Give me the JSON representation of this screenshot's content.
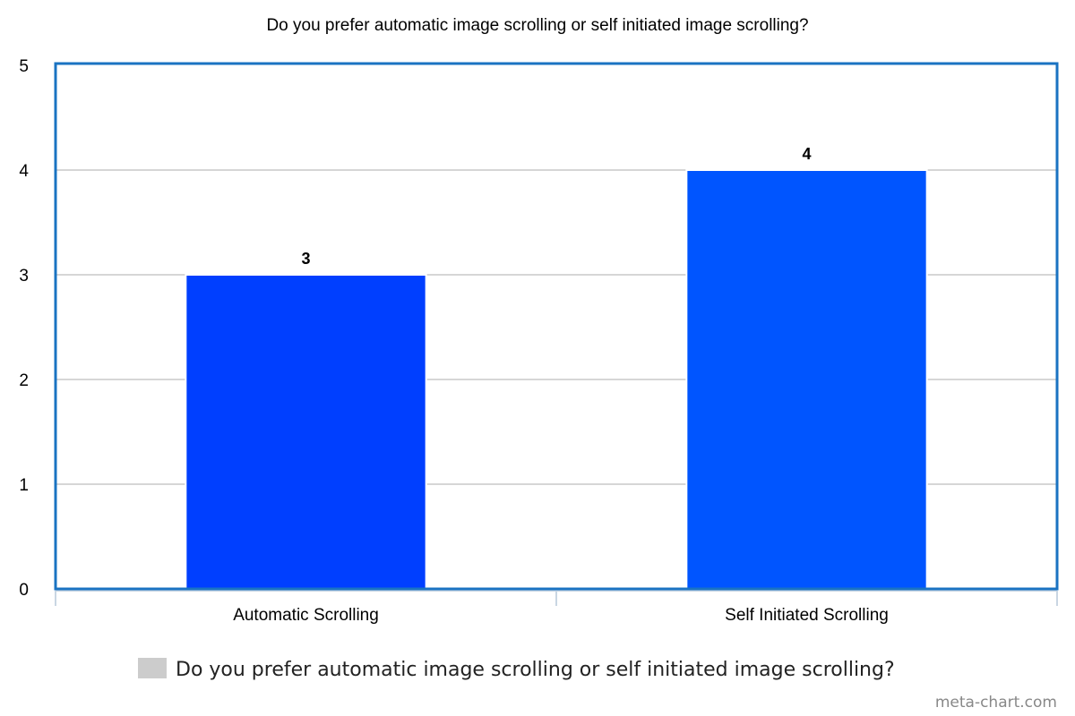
{
  "chart_data": {
    "type": "bar",
    "title": "Do you prefer automatic image scrolling or self initiated image scrolling?",
    "categories": [
      "Automatic Scrolling",
      "Self Initiated Scrolling"
    ],
    "series": [
      {
        "name": "Do you prefer automatic image scrolling or self initiated image scrolling?",
        "values": [
          3,
          4
        ],
        "colors": [
          "#003fff",
          "#0055ff"
        ]
      }
    ],
    "data_labels": [
      "3",
      "4"
    ],
    "ylim": [
      0,
      5
    ],
    "y_ticks": [
      "0",
      "1",
      "2",
      "3",
      "4",
      "5"
    ],
    "grid": true,
    "legend_position": "bottom",
    "plot_border_color": "#1a73c2",
    "grid_color": "#c8c8c8",
    "legend_swatch_color": "#cccccc"
  },
  "watermark": "meta-chart.com"
}
